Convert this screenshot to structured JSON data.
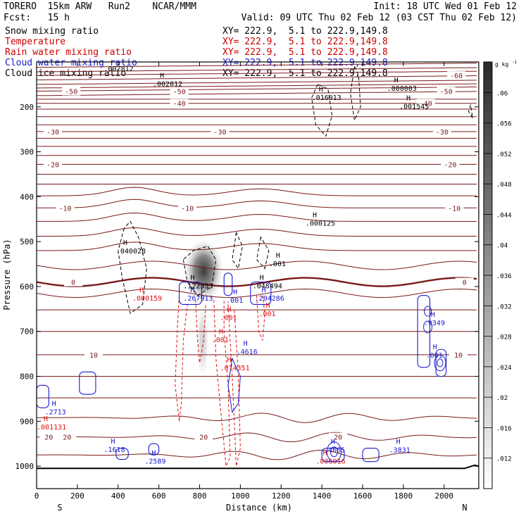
{
  "header": {
    "model": "TORERO  15km ARW   Run2    NCAR/MMM",
    "init": "Init: 18 UTC Wed 01 Feb 12",
    "fcst": "Fcst:   15 h",
    "valid": "Valid: 09 UTC Thu 02 Feb 12 (03 CST Thu 02 Feb 12)"
  },
  "legend": [
    {
      "name": "Snow mixing ratio",
      "xs": "XY= 222.9,  5.1 to 222.9,149.8",
      "color": "#000000"
    },
    {
      "name": "Temperature",
      "xs": "XY= 222.9,  5.1 to 222.9,149.8",
      "color": "#cc0000"
    },
    {
      "name": "Rain water mixing ratio",
      "xs": "XY= 222.9,  5.1 to 222.9,149.8",
      "color": "#cc0000"
    },
    {
      "name": "Cloud water mixing ratio",
      "xs": "XY= 222.9,  5.1 to 222.9,149.8",
      "color": "#1a1acc"
    },
    {
      "name": "Cloud ice mixing ratio",
      "xs": "XY= 222.9,  5.1 to 222.9,149.8",
      "color": "#000000"
    }
  ],
  "colors": {
    "temp": "#7a1a1a",
    "rain": "#e01010",
    "cloud": "#1a1acc",
    "snow": "#000000",
    "ground": "#000000"
  },
  "chart_data": {
    "type": "cross-section",
    "xlabel": "Distance (km)",
    "ylabel": "Pressure (hPa)",
    "xlim": [
      0,
      2170
    ],
    "ylim": [
      1050,
      100
    ],
    "x_ticks": [
      0,
      200,
      400,
      600,
      800,
      1000,
      1200,
      1400,
      1600,
      1800,
      2000
    ],
    "y_ticks": [
      200,
      300,
      400,
      500,
      600,
      700,
      800,
      900,
      1000
    ],
    "endpoints": {
      "left": "S",
      "right": "N"
    },
    "colorbar": {
      "unit": "g kg",
      "unit_sup": "-1",
      "ticks": [
        ".012",
        ".016",
        ".02",
        ".024",
        ".028",
        ".032",
        ".036",
        ".04",
        ".044",
        ".048",
        ".052",
        ".056",
        ".06"
      ]
    },
    "temperature_isotherms": [
      {
        "label": "-60",
        "p": 130,
        "label_x": 2060
      },
      {
        "label": "-50",
        "p": 165,
        "label_x": 170
      },
      {
        "label": "-50",
        "p": 165,
        "label_x": 700
      },
      {
        "label": "-50",
        "p": 165,
        "label_x": 2010
      },
      {
        "label": "-40",
        "p": 192,
        "label_x": 700
      },
      {
        "label": "-40",
        "p": 192,
        "label_x": 1910
      },
      {
        "label": "-30",
        "p": 255,
        "label_x": 80
      },
      {
        "label": "-30",
        "p": 255,
        "label_x": 900
      },
      {
        "label": "-30",
        "p": 255,
        "label_x": 1990
      },
      {
        "label": "-20",
        "p": 328,
        "label_x": 80
      },
      {
        "label": "-20",
        "p": 328,
        "label_x": 2030
      },
      {
        "label": "-10",
        "p": 425,
        "label_x": 140
      },
      {
        "label": "-10",
        "p": 425,
        "label_x": 740
      },
      {
        "label": "-10",
        "p": 425,
        "label_x": 2050
      },
      {
        "label": "0",
        "p": 590,
        "label_x": 180
      },
      {
        "label": "0",
        "p": 590,
        "label_x": 2100
      },
      {
        "label": "10",
        "p": 752,
        "label_x": 280
      },
      {
        "label": "10",
        "p": 752,
        "label_x": 2070
      },
      {
        "label": "20",
        "p": 935,
        "label_x": 820
      },
      {
        "label": "20",
        "p": 935,
        "label_x": 1480
      },
      {
        "label": "20",
        "p": 935,
        "label_x": 60
      },
      {
        "label": "20",
        "p": 935,
        "label_x": 150
      }
    ],
    "maxima_labels": [
      {
        "text": ".002812",
        "x": 570,
        "p": 148,
        "var": "snow"
      },
      {
        "text": ".016013",
        "x": 1350,
        "p": 178,
        "var": "snow"
      },
      {
        "text": ".000003",
        "x": 1720,
        "p": 158,
        "var": "snow"
      },
      {
        "text": ".001545",
        "x": 1780,
        "p": 198,
        "var": "snow"
      },
      {
        "text": ".000125",
        "x": 1320,
        "p": 458,
        "var": "snow"
      },
      {
        "text": ".040028",
        "x": 390,
        "p": 520,
        "var": "snow"
      },
      {
        "text": ".001",
        "x": 1140,
        "p": 548,
        "var": "snow"
      },
      {
        "text": ".122353",
        "x": 720,
        "p": 598,
        "var": "snow"
      },
      {
        "text": ".048494",
        "x": 1060,
        "p": 598,
        "var": "snow"
      },
      {
        "text": ".000159",
        "x": 470,
        "p": 625,
        "var": "rain"
      },
      {
        "text": ".001",
        "x": 900,
        "p": 668,
        "var": "rain"
      },
      {
        "text": ".001",
        "x": 860,
        "p": 718,
        "var": "rain"
      },
      {
        "text": ".001",
        "x": 1090,
        "p": 660,
        "var": "rain"
      },
      {
        "text": ".074351",
        "x": 900,
        "p": 780,
        "var": "rain"
      },
      {
        "text": ".001131",
        "x": 0,
        "p": 912,
        "var": "rain"
      },
      {
        "text": ".006016",
        "x": 1370,
        "p": 988,
        "var": "rain"
      },
      {
        "text": ".2713",
        "x": 40,
        "p": 878,
        "var": "cloud"
      },
      {
        "text": ".1618",
        "x": 330,
        "p": 962,
        "var": "cloud"
      },
      {
        "text": ".2589",
        "x": 530,
        "p": 988,
        "var": "cloud"
      },
      {
        "text": ".4616",
        "x": 980,
        "p": 744,
        "var": "cloud"
      },
      {
        "text": ".4665",
        "x": 1410,
        "p": 963,
        "var": "cloud"
      },
      {
        "text": ".3831",
        "x": 1730,
        "p": 963,
        "var": "cloud"
      },
      {
        "text": ".9349",
        "x": 1900,
        "p": 680,
        "var": "cloud"
      },
      {
        "text": ".001",
        "x": 1910,
        "p": 752,
        "var": "cloud"
      },
      {
        "text": ".267913",
        "x": 720,
        "p": 625,
        "var": "cloud"
      },
      {
        "text": ".204286",
        "x": 1070,
        "p": 625,
        "var": "cloud"
      },
      {
        "text": ".001",
        "x": 930,
        "p": 630,
        "var": "cloud"
      }
    ],
    "reused_labels": {
      "max_marker": "H",
      "x_overlay": "XY=",
      "overlay_value": ".002812"
    }
  }
}
